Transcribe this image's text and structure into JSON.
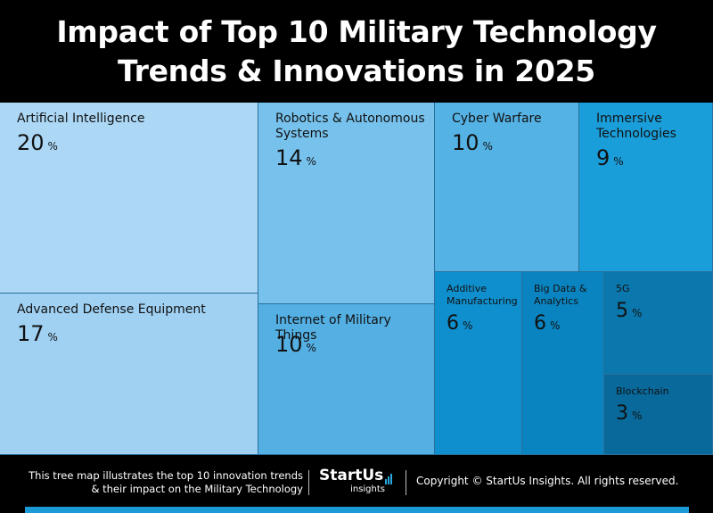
{
  "header": {
    "title_line1": "Impact of Top 10 Military Technology",
    "title_line2": "Trends & Innovations in 2025"
  },
  "chart_data": {
    "type": "treemap",
    "title": "Impact of Top 10 Military Technology Trends & Innovations in 2025",
    "unit": "%",
    "items": [
      {
        "name": "Artificial Intelligence",
        "value": 20,
        "color": "#acd8f6"
      },
      {
        "name": "Advanced Defense Equipment",
        "value": 17,
        "color": "#a0d1f3"
      },
      {
        "name": "Robotics & Autonomous Systems",
        "value": 14,
        "color": "#77c2ed"
      },
      {
        "name": "Internet of Military Things",
        "value": 10,
        "color": "#54afe3"
      },
      {
        "name": "Cyber Warfare",
        "value": 10,
        "color": "#55b2e4"
      },
      {
        "name": "Immersive Technologies",
        "value": 9,
        "color": "#1a9ed9"
      },
      {
        "name": "Additive Manufacturing",
        "value": 6,
        "color": "#0f8fcd"
      },
      {
        "name": "Big Data & Analytics",
        "value": 6,
        "color": "#0a84c0"
      },
      {
        "name": "5G",
        "value": 5,
        "color": "#0b78ad"
      },
      {
        "name": "Blockchain",
        "value": 3,
        "color": "#08699a"
      }
    ]
  },
  "footer": {
    "desc_line1": "This tree map illustrates the top 10 innovation trends",
    "desc_line2": "& their impact on the Military Technology",
    "logo_text": "StartUs",
    "logo_sub": "insights",
    "copyright": "Copyright © StartUs Insights. All rights reserved."
  },
  "colors": {
    "background": "#000000",
    "accent": "#1a9ad6"
  }
}
